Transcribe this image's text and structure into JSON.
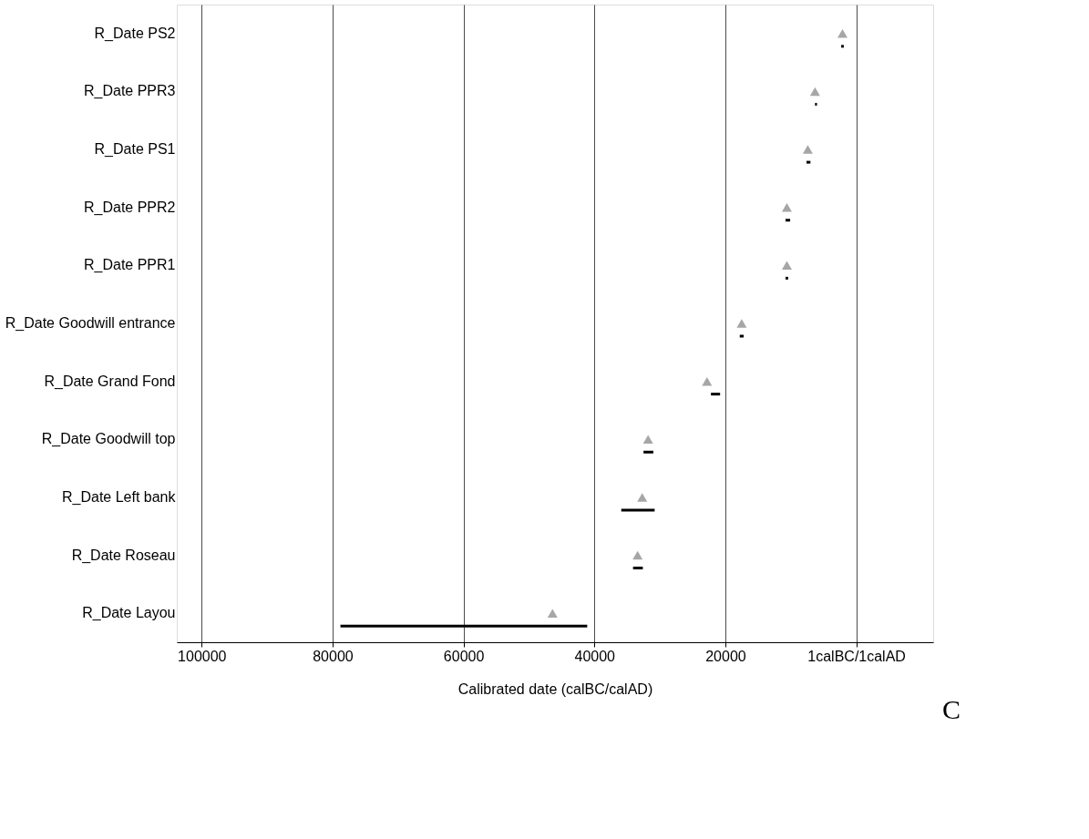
{
  "chart_data": {
    "type": "bar",
    "orientation": "horizontal",
    "xlabel": "Calibrated date (calBC/calAD)",
    "categories": [
      "R_Date PS2",
      "R_Date PPR3",
      "R_Date PS1",
      "R_Date PPR2",
      "R_Date PPR1",
      "R_Date Goodwill entrance",
      "R_Date Grand Fond",
      "R_Date Goodwill top",
      "R_Date Left bank",
      "R_Date Roseau",
      "R_Date Layou"
    ],
    "series": [
      {
        "color": "#000000",
        "base": [
          1900,
          6000,
          7000,
          10100,
          10400,
          17200,
          20800,
          31000,
          30800,
          32600,
          41100
        ],
        "values": [
          400,
          300,
          600,
          700,
          400,
          600,
          1400,
          1500,
          5100,
          1500,
          37700
        ]
      },
      {
        "type": "scatter",
        "color": "#808080",
        "marker": "triangle",
        "values": [
          2100,
          6300,
          7400,
          10600,
          10600,
          17500,
          22800,
          31800,
          32700,
          33400,
          46400
        ]
      }
    ],
    "xlim": [
      103800,
      -11750
    ],
    "xticks": [
      100000,
      80000,
      60000,
      40000,
      20000,
      {
        "value": 0,
        "label": "1calBC/1calAD"
      }
    ],
    "grid": "x",
    "annotations": [
      "C"
    ]
  }
}
